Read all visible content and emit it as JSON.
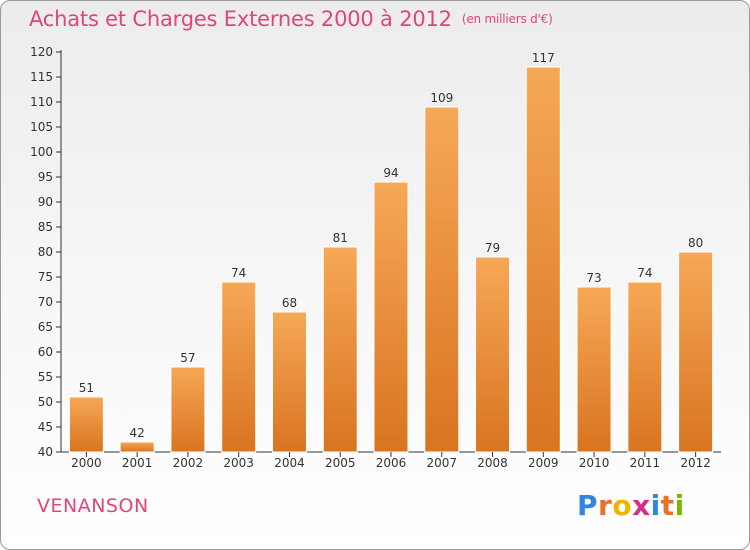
{
  "header": {
    "title": "Achats et Charges Externes 2000 à 2012",
    "unit": "(en milliers d'€)"
  },
  "footer": {
    "city": "VENANSON",
    "brand_letters": [
      "P",
      "r",
      "o",
      "x",
      "i",
      "t",
      "i"
    ]
  },
  "colors": {
    "title": "#e0457a",
    "bar_top": "#f6a857",
    "bar_bottom": "#d97420",
    "axis": "#333333",
    "brand": [
      "#2e86de",
      "#e8702a",
      "#f0b400",
      "#d62f8a",
      "#2e86de",
      "#e8702a",
      "#7ab800"
    ]
  },
  "chart_data": {
    "type": "bar",
    "title": "Achats et Charges Externes 2000 à 2012",
    "categories": [
      "2000",
      "2001",
      "2002",
      "2003",
      "2004",
      "2005",
      "2006",
      "2007",
      "2008",
      "2009",
      "2010",
      "2011",
      "2012"
    ],
    "values": [
      51,
      42,
      57,
      74,
      68,
      81,
      94,
      109,
      79,
      117,
      73,
      74,
      80
    ],
    "ylim": [
      40,
      120
    ],
    "yticks": [
      40,
      45,
      50,
      55,
      60,
      65,
      70,
      75,
      80,
      85,
      90,
      95,
      100,
      105,
      110,
      115,
      120
    ],
    "grid": false,
    "legend": "none"
  }
}
